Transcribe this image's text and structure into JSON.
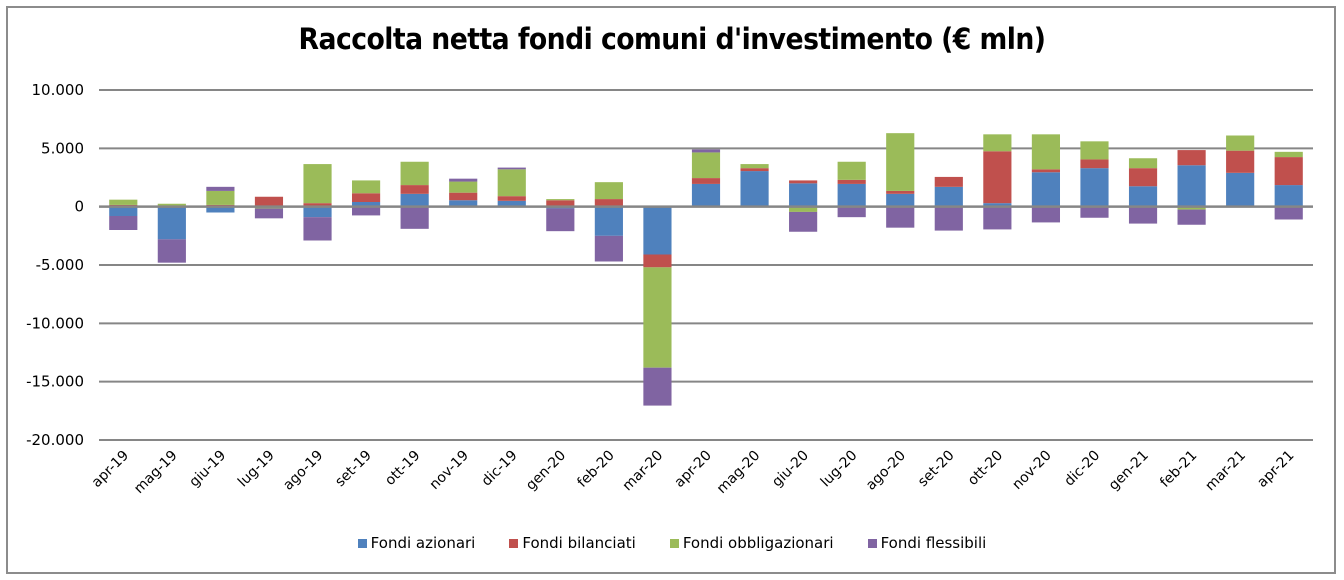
{
  "chart_data": {
    "type": "bar",
    "stacked": true,
    "title": "Raccolta netta fondi comuni d'investimento (€ mln)",
    "xlabel": "",
    "ylabel": "",
    "ylim": [
      -20000,
      10000
    ],
    "yticks": [
      10000,
      5000,
      0,
      -5000,
      -10000,
      -15000,
      -20000
    ],
    "ytick_labels": [
      "10.000",
      "5.000",
      "0",
      "-5.000",
      "-10.000",
      "-15.000",
      "-20.000"
    ],
    "grid": true,
    "legend_position": "bottom",
    "categories": [
      "apr-19",
      "mag-19",
      "giu-19",
      "lug-19",
      "ago-19",
      "set-19",
      "ott-19",
      "nov-19",
      "dic-19",
      "gen-20",
      "feb-20",
      "mar-20",
      "apr-20",
      "mag-20",
      "giu-20",
      "lug-20",
      "ago-20",
      "set-20",
      "ott-20",
      "nov-20",
      "dic-20",
      "gen-21",
      "feb-21",
      "mar-21",
      "apr-21"
    ],
    "series": [
      {
        "name": "Fondi azionari",
        "color": "#4F81BD",
        "values": [
          -800,
          -2800,
          -500,
          0,
          -900,
          400,
          1100,
          550,
          500,
          -150,
          -2500,
          -4100,
          1950,
          3050,
          2000,
          1950,
          1100,
          1700,
          300,
          2950,
          3300,
          1750,
          3550,
          2900,
          1850
        ]
      },
      {
        "name": "Fondi bilanciati",
        "color": "#C0504D",
        "values": [
          150,
          0,
          150,
          850,
          300,
          750,
          750,
          650,
          400,
          550,
          650,
          -1100,
          500,
          250,
          250,
          350,
          250,
          850,
          4450,
          250,
          750,
          1550,
          1300,
          1900,
          2400
        ]
      },
      {
        "name": "Fondi obbligazionari",
        "color": "#9BBB59",
        "values": [
          450,
          250,
          1200,
          -150,
          3350,
          1100,
          2000,
          950,
          2300,
          100,
          1450,
          -8600,
          2200,
          350,
          -450,
          1550,
          4950,
          0,
          1450,
          3000,
          1550,
          850,
          -250,
          1300,
          450
        ]
      },
      {
        "name": "Fondi flessibili",
        "color": "#8064A2",
        "values": [
          -1200,
          -2000,
          350,
          -850,
          -2000,
          -750,
          -1900,
          250,
          150,
          -1950,
          -2200,
          -3250,
          250,
          0,
          -1700,
          -900,
          -1800,
          -2050,
          -1950,
          -1350,
          -950,
          -1450,
          -1300,
          0,
          -1100
        ]
      }
    ]
  },
  "style": {
    "gridline_color": "#868686",
    "frame_color": "#8c8c8c"
  }
}
